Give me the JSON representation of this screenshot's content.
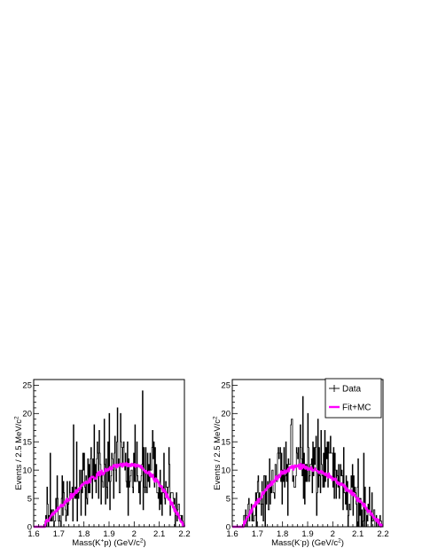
{
  "chart_data": [
    {
      "type": "histogram",
      "xlabel_main": "Mass(K",
      "xlabel_sup": "+",
      "xlabel_tail": "p) (GeV/c",
      "xlabel_end": ")",
      "ylabel_main": "Events / 2.5 MeV/c",
      "xlim": [
        1.6,
        2.2
      ],
      "ylim": [
        0,
        26
      ],
      "xticks": [
        "1.6",
        "1.7",
        "1.8",
        "1.9",
        "2",
        "2.1",
        "2.2"
      ],
      "yticks": [
        "0",
        "5",
        "10",
        "15",
        "20",
        "25"
      ],
      "peak_x": 1.99,
      "peak_y": 10.7,
      "series": [
        {
          "name": "Data",
          "color": "#000000"
        },
        {
          "name": "Fit+MC",
          "color": "#ff00ff"
        }
      ]
    },
    {
      "type": "histogram",
      "xlabel_main": "Mass(K",
      "xlabel_sup": "-",
      "xlabel_tail": "p) (GeV/c",
      "xlabel_end": ")",
      "ylabel_main": "Events / 2.5 MeV/c",
      "xlim": [
        1.6,
        2.2
      ],
      "ylim": [
        0,
        26
      ],
      "xticks": [
        "1.6",
        "1.7",
        "1.8",
        "1.9",
        "2",
        "2.1",
        "2.2"
      ],
      "yticks": [
        "0",
        "5",
        "10",
        "15",
        "20",
        "25"
      ],
      "peak_x": 1.87,
      "peak_y": 10.3,
      "legend": {
        "placement": "top-right",
        "entries": [
          {
            "label": "Data",
            "color": "#000000"
          },
          {
            "label": "Fit+MC",
            "color": "#ff00ff"
          }
        ]
      },
      "series": [
        {
          "name": "Data",
          "color": "#000000"
        },
        {
          "name": "Fit+MC",
          "color": "#ff00ff"
        }
      ]
    }
  ]
}
